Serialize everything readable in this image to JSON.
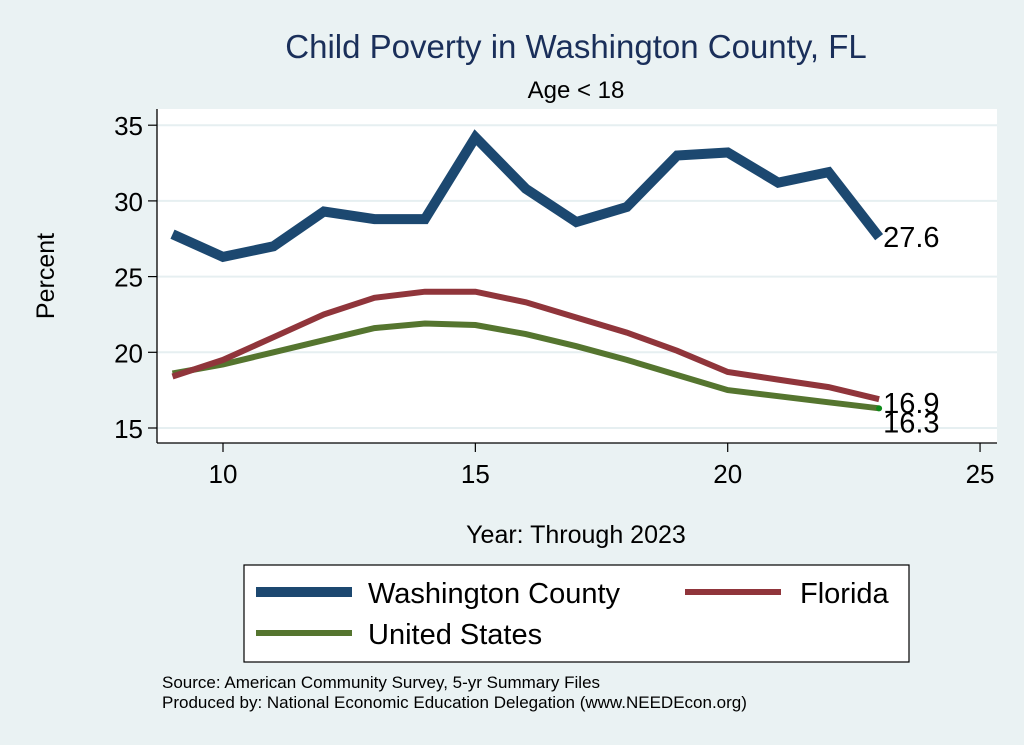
{
  "chart_data": {
    "type": "line",
    "title": "Child Poverty in Washington County, FL",
    "subtitle": "Age < 18",
    "xlabel": "Year: Through 2023",
    "ylabel": "Percent",
    "xlim": [
      9,
      25.3
    ],
    "ylim": [
      14.3,
      36
    ],
    "xticks": [
      10,
      15,
      20,
      25
    ],
    "yticks": [
      15,
      20,
      25,
      30,
      35
    ],
    "grid": true,
    "x": [
      9,
      10,
      11,
      12,
      13,
      14,
      15,
      16,
      17,
      18,
      19,
      20,
      21,
      22,
      23
    ],
    "series": [
      {
        "name": "Washington County",
        "color": "#1c4870",
        "values": [
          27.8,
          26.3,
          27.0,
          29.3,
          28.8,
          28.8,
          34.2,
          30.8,
          28.6,
          29.6,
          33.0,
          33.2,
          31.2,
          31.9,
          27.6
        ],
        "end_label": "27.6"
      },
      {
        "name": "Florida",
        "color": "#90353b",
        "values": [
          18.4,
          19.5,
          21.0,
          22.5,
          23.6,
          24.0,
          24.0,
          23.3,
          22.3,
          21.3,
          20.1,
          18.7,
          18.2,
          17.7,
          16.9
        ],
        "end_label": "16.9"
      },
      {
        "name": "United States",
        "color": "#55752f",
        "values": [
          18.6,
          19.2,
          20.0,
          20.8,
          21.6,
          21.9,
          21.8,
          21.2,
          20.4,
          19.5,
          18.5,
          17.5,
          17.1,
          16.7,
          16.3
        ],
        "end_label": "16.3"
      }
    ],
    "legend": {
      "placement": "bottom",
      "entries": [
        "Washington County",
        "Florida",
        "United States"
      ]
    },
    "notes": [
      "Source: American Community Survey, 5-yr Summary Files",
      "Produced by: National Economic Education Delegation (www.NEEDEcon.org)"
    ]
  }
}
